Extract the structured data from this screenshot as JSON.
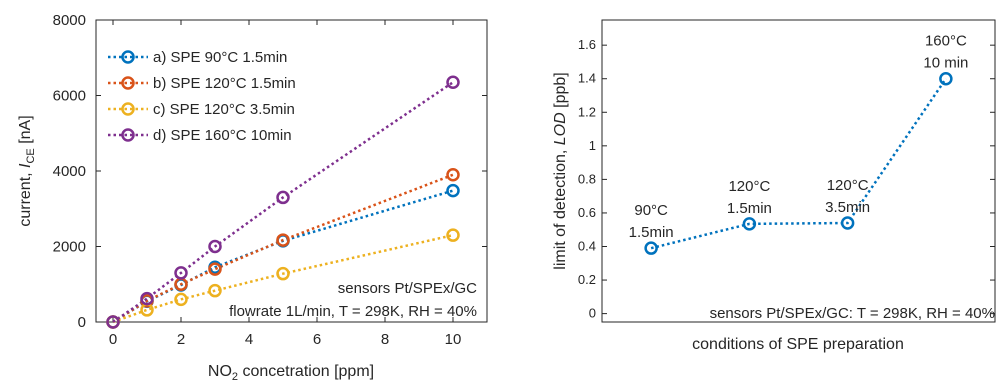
{
  "chart_data": [
    {
      "type": "line",
      "xlabel_main": "NO",
      "xlabel_sub": "2",
      "xlabel_rest": " concetration [ppm]",
      "ylabel_main": "current, ",
      "ylabel_italic": "I",
      "ylabel_sub": "CE",
      "ylabel_rest": " [nA]",
      "xlim": [
        -0.5,
        11
      ],
      "ylim": [
        0,
        8000
      ],
      "xticks": [
        0,
        2,
        4,
        6,
        8,
        10
      ],
      "xtick_labels": [
        "0",
        "2",
        "4",
        "6",
        "8",
        "10"
      ],
      "yticks": [
        0,
        2000,
        4000,
        6000,
        8000
      ],
      "ytick_labels": [
        "0",
        "2000",
        "4000",
        "6000",
        "8000"
      ],
      "legend_position": "top-left",
      "annotation_line1": "sensors Pt/SPEx/GC",
      "annotation_line2": "flowrate 1L/min, T = 298K, RH = 40%",
      "series": [
        {
          "name": "a) SPE 90°C 1.5min",
          "color": "#0072BD",
          "x": [
            0,
            1,
            2,
            3,
            5,
            10
          ],
          "y": [
            0,
            550,
            980,
            1450,
            2150,
            3480
          ]
        },
        {
          "name": "b) SPE 120°C 1.5min",
          "color": "#D95319",
          "x": [
            0,
            1,
            2,
            3,
            5,
            10
          ],
          "y": [
            0,
            560,
            1000,
            1400,
            2170,
            3900
          ]
        },
        {
          "name": "c) SPE 120°C 3.5min",
          "color": "#EDB120",
          "x": [
            0,
            1,
            2,
            3,
            5,
            10
          ],
          "y": [
            0,
            320,
            600,
            830,
            1280,
            2300
          ]
        },
        {
          "name": "d) SPE 160°C 10min",
          "color": "#7E2F8E",
          "x": [
            0,
            1,
            2,
            3,
            5,
            10
          ],
          "y": [
            0,
            620,
            1300,
            2000,
            3300,
            6350
          ]
        }
      ]
    },
    {
      "type": "line",
      "xlabel": "conditions of SPE preparation",
      "ylabel_main": "limit of detection, ",
      "ylabel_italic": "LOD",
      "ylabel_rest": " [ppb]",
      "xlim": [
        0.5,
        4.5
      ],
      "ylim": [
        -0.05,
        1.75
      ],
      "yticks": [
        0,
        0.2,
        0.4,
        0.6,
        0.8,
        1,
        1.2,
        1.4,
        1.6
      ],
      "ytick_labels": [
        "0",
        "0.2",
        "0.4",
        "0.6",
        "0.8",
        "1",
        "1.2",
        "1.4",
        "1.6"
      ],
      "annotation": "sensors Pt/SPEx/GC: T = 298K, RH = 40%",
      "series": [
        {
          "color": "#0072BD",
          "x": [
            1,
            2,
            3,
            4
          ],
          "y": [
            0.39,
            0.535,
            0.54,
            1.4
          ]
        }
      ],
      "point_labels": [
        {
          "line1": "90°C",
          "line2": "1.5min"
        },
        {
          "line1": "120°C",
          "line2": "1.5min"
        },
        {
          "line1": "120°C",
          "line2": "3.5min"
        },
        {
          "line1": "160°C",
          "line2": "10 min"
        }
      ]
    }
  ]
}
